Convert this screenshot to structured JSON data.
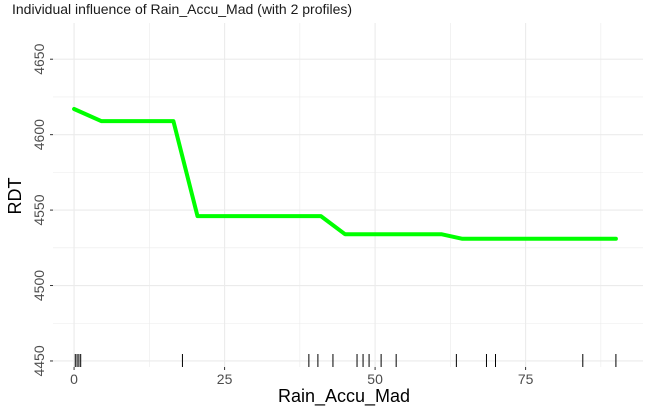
{
  "title": "Individual influence of Rain_Accu_Mad (with 2 profiles)",
  "colors": {
    "line": "#00ff00",
    "grid": "#ebebeb",
    "background": "#ffffff",
    "rug": "#000000"
  },
  "chart_data": {
    "type": "line",
    "title": "Individual influence of Rain_Accu_Mad (with 2 profiles)",
    "xlabel": "Rain_Accu_Mad",
    "ylabel": "RDT",
    "xlim": [
      -3.5,
      94.5
    ],
    "ylim": [
      4446,
      4674
    ],
    "x_ticks": [
      0,
      25,
      50,
      75
    ],
    "y_ticks": [
      4450,
      4500,
      4550,
      4600,
      4650
    ],
    "grid": true,
    "series": [
      {
        "x": [
          0,
          4.5,
          16.5,
          20.5,
          41,
          45,
          61,
          64.5,
          90
        ],
        "y": [
          4617,
          4609,
          4609,
          4546,
          4546,
          4534,
          4534,
          4531,
          4531
        ]
      }
    ],
    "rug": [
      0.2,
      0.5,
      0.8,
      1.1,
      18,
      39,
      40.5,
      43,
      47,
      48,
      49,
      51,
      53.5,
      63.5,
      68.5,
      70,
      84.5,
      90
    ]
  }
}
